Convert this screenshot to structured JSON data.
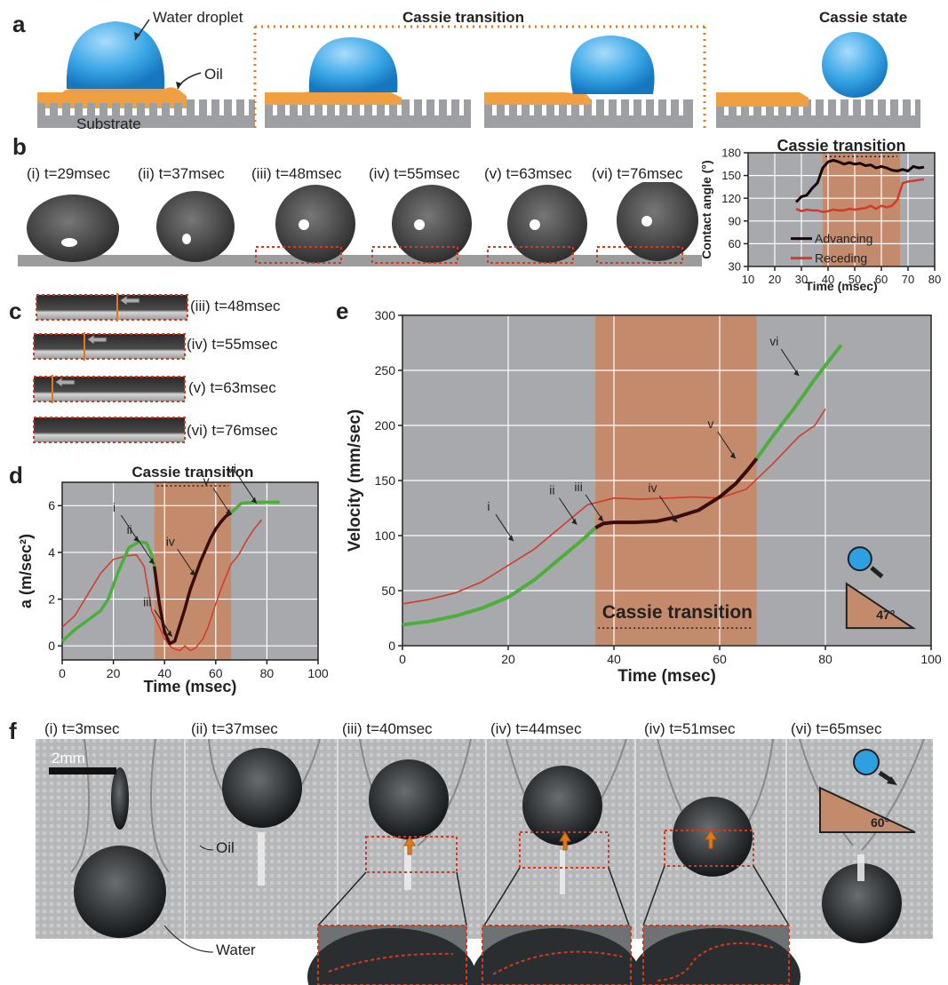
{
  "panels": {
    "a": "a",
    "b": "b",
    "c": "c",
    "d": "d",
    "e": "e",
    "f": "f"
  },
  "panel_a": {
    "water_droplet": "Water droplet",
    "oil": "Oil",
    "substrate": "Substrate",
    "cassie_transition": "Cassie transition",
    "cassie_state": "Cassie state"
  },
  "panel_b": {
    "frames": [
      "(i) t=29msec",
      "(ii) t=37msec",
      "(iii) t=48msec",
      "(iv) t=55msec",
      "(v) t=63msec",
      "(vi) t=76msec"
    ]
  },
  "panel_c": {
    "frames": [
      "(iii) t=48msec",
      "(iv) t=55msec",
      "(v) t=63msec",
      "(vi) t=76msec"
    ]
  },
  "panel_f": {
    "frames": [
      "(i) t=3msec",
      "(ii) t=37msec",
      "(iii) t=40msec",
      "(iv) t=44msec",
      "(iv) t=51msec",
      "(vi) t=65msec"
    ],
    "scale_bar": "2mm",
    "oil": "Oil",
    "water": "Water",
    "angle": "60°"
  },
  "colors": {
    "plot_bg": "#a7a9ac",
    "band": "#c48a6c",
    "green": "#4caf3c",
    "dark": "#3a0d0d",
    "red": "#d33a2a",
    "droplet": "#2e9fe0",
    "oil": "#f0a040",
    "substrate": "#9d9fa2"
  },
  "chart_data": [
    {
      "id": "contact_angle",
      "type": "line",
      "title": "Cassie transition",
      "xlabel": "Time (msec)",
      "ylabel": "Contact angle (°)",
      "xlim": [
        10,
        80
      ],
      "ylim": [
        30,
        180
      ],
      "xticks": [
        10,
        20,
        30,
        40,
        50,
        60,
        70,
        80
      ],
      "yticks": [
        30,
        60,
        90,
        120,
        150,
        180
      ],
      "band": [
        38,
        67
      ],
      "legend": "bottom-left",
      "grid": true,
      "series": [
        {
          "name": "Advancing",
          "color": "#1a0505",
          "x": [
            28,
            30,
            32,
            34,
            36,
            38,
            40,
            42,
            44,
            46,
            48,
            50,
            52,
            54,
            56,
            58,
            60,
            62,
            64,
            66,
            68,
            70,
            72,
            74,
            76
          ],
          "y": [
            115,
            122,
            124,
            133,
            140,
            160,
            168,
            170,
            168,
            165,
            167,
            165,
            166,
            163,
            164,
            160,
            162,
            160,
            157,
            156,
            158,
            156,
            162,
            160,
            161
          ]
        },
        {
          "name": "Receding",
          "color": "#d33a2a",
          "x": [
            28,
            30,
            32,
            34,
            36,
            38,
            40,
            42,
            44,
            46,
            48,
            50,
            52,
            54,
            56,
            58,
            60,
            62,
            64,
            66,
            68,
            70,
            72,
            74,
            76
          ],
          "y": [
            106,
            103,
            105,
            104,
            104,
            102,
            103,
            105,
            104,
            104,
            106,
            105,
            106,
            107,
            110,
            106,
            110,
            108,
            110,
            118,
            140,
            142,
            143,
            144,
            145
          ]
        }
      ]
    },
    {
      "id": "acceleration",
      "type": "line",
      "title": "Cassie transition",
      "xlabel": "Time (msec)",
      "ylabel": "a (m/sec²)",
      "xlim": [
        0,
        100
      ],
      "ylim": [
        -0.6,
        7
      ],
      "xticks": [
        0,
        20,
        40,
        60,
        80,
        100
      ],
      "yticks": [
        0,
        2,
        4,
        6
      ],
      "band": [
        36,
        66
      ],
      "grid": true,
      "annotations": [
        {
          "text": "i",
          "x": 30,
          "y": 4.45
        },
        {
          "text": "ii",
          "x": 36,
          "y": 3.5
        },
        {
          "text": "iii",
          "x": 43,
          "y": 0.4
        },
        {
          "text": "iv",
          "x": 52,
          "y": 3.0
        },
        {
          "text": "v",
          "x": 66,
          "y": 5.6
        },
        {
          "text": "vi",
          "x": 76,
          "y": 6.1
        }
      ],
      "series": [
        {
          "name": "green",
          "color": "#4caf3c",
          "x": [
            0,
            5,
            10,
            15,
            18,
            22,
            26,
            30,
            33,
            35,
            36
          ],
          "y": [
            0.2,
            0.7,
            1.1,
            1.5,
            2.0,
            3.2,
            4.2,
            4.45,
            4.4,
            3.9,
            3.4
          ]
        },
        {
          "name": "dark",
          "color": "#3a0d0d",
          "x": [
            36,
            38,
            40,
            42,
            44,
            46,
            48,
            50,
            52,
            54,
            56,
            58,
            60,
            62,
            64,
            66
          ],
          "y": [
            3.4,
            1.8,
            0.6,
            0.1,
            0.2,
            0.9,
            1.6,
            2.4,
            3.0,
            3.6,
            4.1,
            4.6,
            5.0,
            5.3,
            5.55,
            5.7
          ]
        },
        {
          "name": "green2",
          "color": "#4caf3c",
          "x": [
            66,
            70,
            75,
            80,
            85
          ],
          "y": [
            5.7,
            6.1,
            6.15,
            6.15,
            6.15
          ]
        },
        {
          "name": "red",
          "color": "#d33a2a",
          "x": [
            0,
            5,
            10,
            15,
            20,
            25,
            29,
            32,
            35,
            38,
            40,
            43,
            46,
            48,
            50,
            52,
            55,
            57,
            60,
            63,
            66,
            69,
            72,
            75,
            78
          ],
          "y": [
            0.8,
            1.3,
            2.2,
            3.1,
            3.7,
            3.85,
            3.9,
            3.4,
            1.5,
            0.8,
            0.3,
            -0.1,
            -0.2,
            0.0,
            -0.2,
            -0.1,
            0.3,
            0.8,
            1.8,
            2.7,
            3.5,
            3.9,
            4.5,
            5.0,
            5.4
          ]
        }
      ]
    },
    {
      "id": "velocity",
      "type": "line",
      "title": "Cassie transition",
      "xlabel": "Time (msec)",
      "ylabel": "Velocity (mm/sec)",
      "xlim": [
        0,
        100
      ],
      "ylim": [
        0,
        300
      ],
      "xticks": [
        0,
        20,
        40,
        60,
        80,
        100
      ],
      "yticks": [
        0,
        50,
        100,
        150,
        200,
        250,
        300
      ],
      "band": [
        36.5,
        67
      ],
      "grid": true,
      "inset_angle": "47°",
      "annotations": [
        {
          "text": "i",
          "x": 21,
          "y": 95
        },
        {
          "text": "ii",
          "x": 33,
          "y": 110
        },
        {
          "text": "iii",
          "x": 38,
          "y": 113
        },
        {
          "text": "iv",
          "x": 52,
          "y": 112
        },
        {
          "text": "v",
          "x": 63,
          "y": 170
        },
        {
          "text": "vi",
          "x": 75,
          "y": 245
        }
      ],
      "series": [
        {
          "name": "green",
          "color": "#4caf3c",
          "x": [
            0,
            5,
            10,
            15,
            20,
            25,
            30,
            34,
            36.5
          ],
          "y": [
            19,
            22,
            27,
            34,
            44,
            60,
            80,
            96,
            107
          ]
        },
        {
          "name": "dark",
          "color": "#3a0d0d",
          "x": [
            36.5,
            38,
            40,
            44,
            48,
            52,
            56,
            60,
            63,
            65,
            67
          ],
          "y": [
            107,
            111,
            112,
            112,
            113,
            117,
            123,
            135,
            147,
            158,
            170
          ]
        },
        {
          "name": "green2",
          "color": "#4caf3c",
          "x": [
            67,
            70,
            74,
            78,
            83
          ],
          "y": [
            170,
            190,
            215,
            242,
            273
          ]
        },
        {
          "name": "red",
          "color": "#d33a2a",
          "x": [
            0,
            5,
            10,
            15,
            20,
            25,
            30,
            35,
            40,
            45,
            50,
            55,
            60,
            65,
            70,
            75,
            78,
            80
          ],
          "y": [
            38,
            42,
            48,
            58,
            73,
            88,
            108,
            128,
            134,
            133,
            134,
            135,
            134,
            142,
            165,
            190,
            200,
            215
          ]
        }
      ]
    }
  ]
}
